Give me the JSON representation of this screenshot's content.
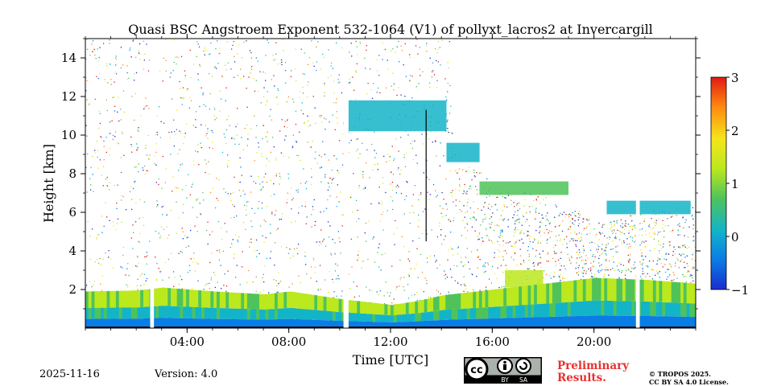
{
  "chart_data": {
    "type": "heatmap",
    "title": "Quasi BSC Angstroem Exponent 532-1064 (V1) of pollyxt_lacros2 at Invercargill",
    "xlabel": "Time [UTC]",
    "ylabel": "Height [km]",
    "xlim_hours": [
      0,
      24
    ],
    "ylim_km": [
      0,
      15
    ],
    "x_ticks": [
      {
        "hour": 4,
        "label": "04:00"
      },
      {
        "hour": 8,
        "label": "08:00"
      },
      {
        "hour": 12,
        "label": "12:00"
      },
      {
        "hour": 16,
        "label": "16:00"
      },
      {
        "hour": 20,
        "label": "20:00"
      }
    ],
    "y_ticks": [
      {
        "value": 2,
        "label": "2"
      },
      {
        "value": 4,
        "label": "4"
      },
      {
        "value": 6,
        "label": "6"
      },
      {
        "value": 8,
        "label": "8"
      },
      {
        "value": 10,
        "label": "10"
      },
      {
        "value": 12,
        "label": "12"
      },
      {
        "value": 14,
        "label": "14"
      }
    ],
    "colorbar": {
      "min": -1,
      "max": 3,
      "ticks": [
        {
          "value": 3,
          "label": "3"
        },
        {
          "value": 2,
          "label": "2"
        },
        {
          "value": 1,
          "label": "1"
        },
        {
          "value": 0,
          "label": "0"
        },
        {
          "value": -1,
          "label": "−1"
        }
      ],
      "colors": [
        "#1a2ccf",
        "#0a7ce6",
        "#14b4c8",
        "#4fc35a",
        "#bce81e",
        "#f4e51a",
        "#ff8a10",
        "#e01a12"
      ]
    },
    "gaps_hours": [
      [
        2.55,
        2.7
      ],
      [
        10.15,
        10.35
      ],
      [
        21.65,
        21.8
      ]
    ],
    "boundary_layer_top_km": [
      [
        0.0,
        1.9
      ],
      [
        2.0,
        1.95
      ],
      [
        3.0,
        2.1
      ],
      [
        5.0,
        1.9
      ],
      [
        7.0,
        1.75
      ],
      [
        8.0,
        1.9
      ],
      [
        10.0,
        1.5
      ],
      [
        11.0,
        1.35
      ],
      [
        12.0,
        1.2
      ],
      [
        13.0,
        1.4
      ],
      [
        14.0,
        1.7
      ],
      [
        16.0,
        2.0
      ],
      [
        18.0,
        2.3
      ],
      [
        20.0,
        2.6
      ],
      [
        22.0,
        2.5
      ],
      [
        24.0,
        2.3
      ]
    ],
    "noise_ceiling_km": [
      [
        0.0,
        15
      ],
      [
        14.4,
        15
      ],
      [
        14.45,
        9.5
      ],
      [
        16.0,
        7.5
      ],
      [
        19.0,
        6.5
      ],
      [
        20.0,
        5.5
      ],
      [
        24.0,
        6.5
      ]
    ],
    "layers": [
      {
        "name": "cirrus-upper",
        "t0": 10.3,
        "t1": 14.2,
        "h0": 10.2,
        "h1": 11.8,
        "value": 0.4
      },
      {
        "name": "cloud-plateau",
        "t0": 14.2,
        "t1": 15.5,
        "h0": 8.6,
        "h1": 9.6,
        "value": 0.3
      },
      {
        "name": "cloud-mid",
        "t0": 15.5,
        "t1": 19.0,
        "h0": 6.9,
        "h1": 7.6,
        "value": 0.6
      },
      {
        "name": "cloud-late",
        "t0": 20.5,
        "t1": 23.8,
        "h0": 5.9,
        "h1": 6.6,
        "value": 0.3
      },
      {
        "name": "aerosol-mid",
        "t0": 16.5,
        "t1": 18.0,
        "h0": 2.1,
        "h1": 3.0,
        "value": 1.0
      }
    ],
    "vertical_line": {
      "hour": 13.4,
      "h0": 4.5,
      "h1": 11.3
    }
  },
  "footer": {
    "date": "2025-11-16",
    "version": "Version: 4.0",
    "preliminary_line1": "Preliminary",
    "preliminary_line2": "Results.",
    "copyright_line1": "© TROPOS 2025.",
    "copyright_line2": "CC BY SA 4.0 License.",
    "license_badge": {
      "cc": "cc",
      "by": "BY",
      "sa": "SA"
    }
  }
}
